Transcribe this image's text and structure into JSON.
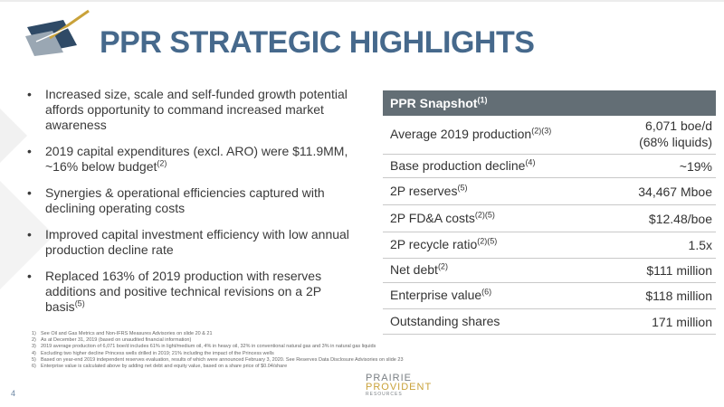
{
  "header": {
    "title": "PPR STRATEGIC HIGHLIGHTS"
  },
  "bullets": [
    {
      "text": "Increased size, scale and self-funded growth potential affords opportunity to command increased market awareness"
    },
    {
      "text": "2019 capital expenditures (excl. ARO) were $11.9MM, ~16% below budget",
      "sup": "(2)"
    },
    {
      "text": "Synergies & operational efficiencies captured with declining operating costs"
    },
    {
      "text": "Improved capital investment efficiency with low annual production decline rate"
    },
    {
      "text": "Replaced 163% of 2019 production with reserves additions and positive technical revisions on a 2P basis",
      "sup": "(5)"
    }
  ],
  "snapshot": {
    "title": "PPR Snapshot",
    "title_sup": "(1)",
    "rows": [
      {
        "label": "Average 2019 production",
        "sup": "(2)(3)",
        "value": "6,071 boe/d",
        "value_note": "(68% liquids)"
      },
      {
        "label": "Base production decline",
        "sup": "(4)",
        "value": "~19%"
      },
      {
        "label": "2P reserves",
        "sup": "(5)",
        "value": "34,467 Mboe"
      },
      {
        "label": "2P FD&A costs",
        "sup": "(2)(5)",
        "value": "$12.48/boe"
      },
      {
        "label": "2P recycle ratio",
        "sup": "(2)(5)",
        "value": "1.5x"
      },
      {
        "label": "Net debt",
        "sup": "(2)",
        "value": "$111 million"
      },
      {
        "label": "Enterprise value",
        "sup": "(6)",
        "value": "$118 million"
      },
      {
        "label": "Outstanding shares",
        "value": "171 million"
      }
    ]
  },
  "footnotes": [
    {
      "marker": "1)",
      "text": "See Oil and Gas Metrics and Non-IFRS Measures Advisories on slide 20 & 21"
    },
    {
      "marker": "2)",
      "text": "As at December 31, 2019 (based on unaudited financial information)"
    },
    {
      "marker": "3)",
      "text": "2019 average production of 6,071 boe/d includes 61% in light/medium oil, 4% in heavy oil, 32% in conventional natural gas and 3% in natural gas liquids"
    },
    {
      "marker": "4)",
      "text": "Excluding two higher decline Princess wells drilled in 2019; 21% including the impact of the Princess wells"
    },
    {
      "marker": "5)",
      "text": "Based on year-end 2019 independent reserves evaluation, results of which were announced February 3, 2020. See Reserves Data Disclosure Advisories on slide 23"
    },
    {
      "marker": "6)",
      "text": "Enterprise value is calculated above by adding net debt and equity value, based on a share price of $0.04/share"
    }
  ],
  "footer": {
    "page_number": "4",
    "logo_line1": "PRAIRIE",
    "logo_line2": "PROVIDENT",
    "logo_line3": "RESOURCES"
  }
}
